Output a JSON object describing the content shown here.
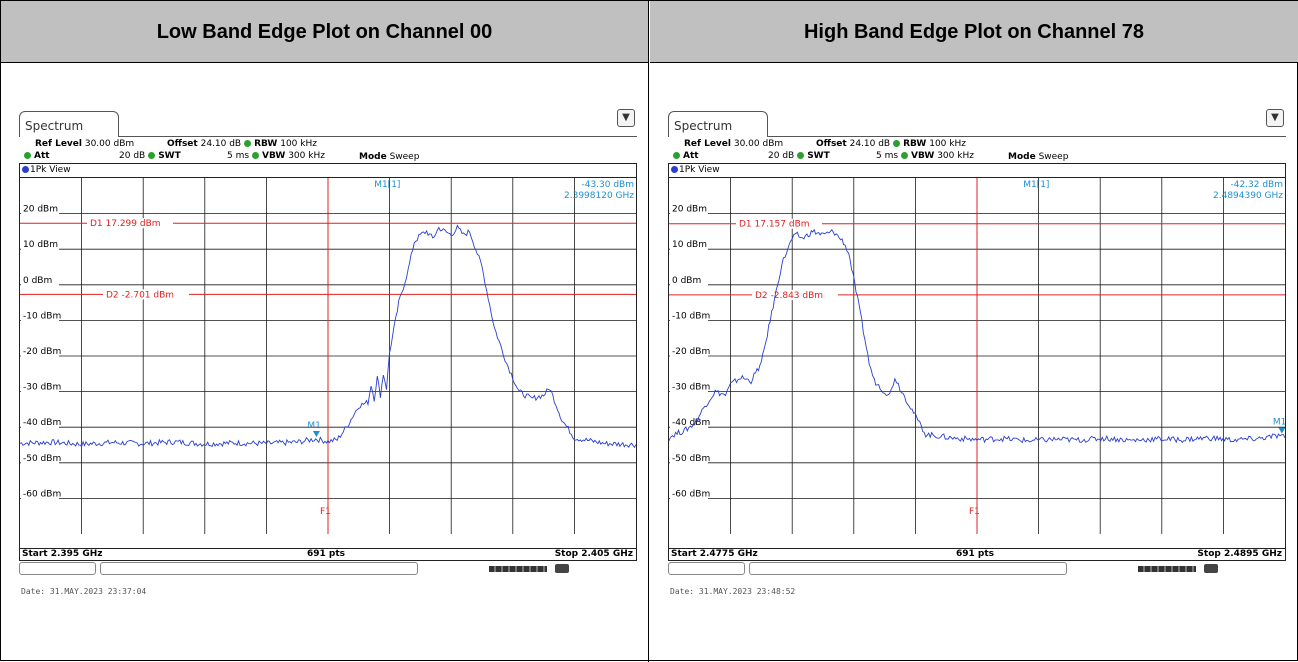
{
  "panels": [
    {
      "title": "Low Band Edge Plot on Channel 00",
      "tab_label": "Spectrum",
      "menu_icon": "display-config-icon",
      "params": {
        "ref_level_label": "Ref Level",
        "ref_level_value": "30.00 dBm",
        "offset_label": "Offset",
        "offset_value": "24.10 dB",
        "rbw_label": "RBW",
        "rbw_value": "100 kHz",
        "att_label": "Att",
        "att_value": "20 dB",
        "swt_label": "SWT",
        "swt_value": "5 ms",
        "vbw_label": "VBW",
        "vbw_value": "300 kHz",
        "mode_label": "Mode",
        "mode_value": "Sweep"
      },
      "view_label": "1Pk View",
      "marker_readout": {
        "name": "M1[1]",
        "level": "-43.30 dBm",
        "freq": "2.3998120 GHz"
      },
      "footer": {
        "start": "Start 2.395 GHz",
        "pts": "691 pts",
        "stop": "Stop 2.405 GHz"
      },
      "date": "Date: 31.MAY.2023  23:37:04"
    },
    {
      "title": "High Band Edge Plot on Channel 78",
      "tab_label": "Spectrum",
      "menu_icon": "display-config-icon",
      "params": {
        "ref_level_label": "Ref Level",
        "ref_level_value": "30.00 dBm",
        "offset_label": "Offset",
        "offset_value": "24.10 dB",
        "rbw_label": "RBW",
        "rbw_value": "100 kHz",
        "att_label": "Att",
        "att_value": "20 dB",
        "swt_label": "SWT",
        "swt_value": "5 ms",
        "vbw_label": "VBW",
        "vbw_value": "300 kHz",
        "mode_label": "Mode",
        "mode_value": "Sweep"
      },
      "view_label": "1Pk View",
      "marker_readout": {
        "name": "M1[1]",
        "level": "-42.32 dBm",
        "freq": "2.4894390 GHz"
      },
      "footer": {
        "start": "Start 2.4775 GHz",
        "pts": "691 pts",
        "stop": "Stop 2.4895 GHz"
      },
      "date": "Date: 31.MAY.2023  23:48:52"
    }
  ],
  "chart_data": [
    {
      "type": "line",
      "title": "Low Band Edge Plot on Channel 00",
      "x_unit": "GHz",
      "xlim": [
        2.395,
        2.405
      ],
      "ylim": [
        -70,
        30
      ],
      "yticks": [
        20,
        10,
        0,
        -10,
        -20,
        -30,
        -40,
        -50,
        -60
      ],
      "ytick_labels": [
        "20 dBm",
        "10 dBm",
        "0 dBm",
        "-10 dBm",
        "-20 dBm",
        "-30 dBm",
        "-40 dBm",
        "-50 dBm",
        "-60 dBm"
      ],
      "grid": true,
      "trace_color": "#2a3fd0",
      "ref_color": "#e02020",
      "marker_color": "#1f8fd0",
      "hlines": [
        {
          "label": "D1  17.299 dBm",
          "y": 17.299
        },
        {
          "label": "D2  -2.701 dBm",
          "y": -2.701
        }
      ],
      "vline": {
        "label": "F1",
        "x": 2.4
      },
      "marker": {
        "label": "M1",
        "x": 2.399812,
        "y": -43.3
      },
      "series": [
        {
          "x": [
            2.395,
            2.3955,
            2.396,
            2.3965,
            2.397,
            2.3975,
            2.398,
            2.3985,
            2.399,
            2.3995,
            2.3998,
            2.4,
            2.40015,
            2.4003,
            2.4005,
            2.40065,
            2.4007,
            2.40075,
            2.4008,
            2.40085,
            2.4009,
            2.40095,
            2.401,
            2.40115,
            2.4013,
            2.4014,
            2.4015,
            2.4016,
            2.4017,
            2.4018,
            2.4019,
            2.402,
            2.4021,
            2.4022,
            2.4023,
            2.4024,
            2.4025,
            2.4027,
            2.4029,
            2.4031,
            2.4033,
            2.4035,
            2.4036,
            2.4038,
            2.404,
            2.4045,
            2.405
          ],
          "y": [
            -44.5,
            -44.2,
            -44.8,
            -44.3,
            -44.6,
            -44.1,
            -44.7,
            -44.4,
            -44.6,
            -44.2,
            -43.3,
            -44.0,
            -43.5,
            -40,
            -34,
            -33,
            -28,
            -32,
            -26,
            -31,
            -25,
            -29,
            -19,
            -5,
            4,
            12,
            14,
            15,
            13,
            16,
            15,
            14,
            16,
            14,
            15,
            10,
            5,
            -12,
            -22,
            -30,
            -32,
            -31,
            -29,
            -38,
            -43,
            -44.6,
            -44.9
          ]
        }
      ]
    },
    {
      "type": "line",
      "title": "High Band Edge Plot on Channel 78",
      "x_unit": "GHz",
      "xlim": [
        2.4775,
        2.4895
      ],
      "ylim": [
        -70,
        30
      ],
      "yticks": [
        20,
        10,
        0,
        -10,
        -20,
        -30,
        -40,
        -50,
        -60
      ],
      "ytick_labels": [
        "20 dBm",
        "10 dBm",
        "0 dBm",
        "-10 dBm",
        "-20 dBm",
        "-30 dBm",
        "-40 dBm",
        "-50 dBm",
        "-60 dBm"
      ],
      "grid": true,
      "trace_color": "#2a3fd0",
      "ref_color": "#e02020",
      "marker_color": "#1f8fd0",
      "hlines": [
        {
          "label": "D1  17.157 dBm",
          "y": 17.157
        },
        {
          "label": "D2  -2.843 dBm",
          "y": -2.843
        }
      ],
      "vline": {
        "label": "F1",
        "x": 2.4835
      },
      "marker": {
        "label": "M1",
        "x": 2.489439,
        "y": -42.32
      },
      "series": [
        {
          "x": [
            2.4775,
            2.4776,
            2.4778,
            2.478,
            2.4782,
            2.4784,
            2.4786,
            2.4787,
            2.4789,
            2.4791,
            2.4793,
            2.4795,
            2.4797,
            2.4799,
            2.48,
            2.4801,
            2.4803,
            2.4805,
            2.4807,
            2.4809,
            2.481,
            2.4812,
            2.4814,
            2.4815,
            2.4817,
            2.4818,
            2.4819,
            2.482,
            2.4825,
            2.483,
            2.4835,
            2.484,
            2.4845,
            2.485,
            2.4855,
            2.486,
            2.4865,
            2.487,
            2.4875,
            2.488,
            2.4885,
            2.489,
            2.4894,
            2.4895
          ],
          "y": [
            -43,
            -42,
            -41,
            -39,
            -34,
            -30,
            -31,
            -28,
            -26,
            -27,
            -22,
            -8,
            6,
            13,
            14,
            13,
            15,
            14,
            15,
            12,
            9,
            -6,
            -22,
            -27,
            -30,
            -31,
            -26,
            -29,
            -42,
            -43,
            -43.5,
            -43.2,
            -43.8,
            -43.4,
            -43.6,
            -43.1,
            -43.7,
            -43.3,
            -43.5,
            -43.0,
            -43.6,
            -43.2,
            -42.32,
            -43.0
          ]
        }
      ]
    }
  ]
}
